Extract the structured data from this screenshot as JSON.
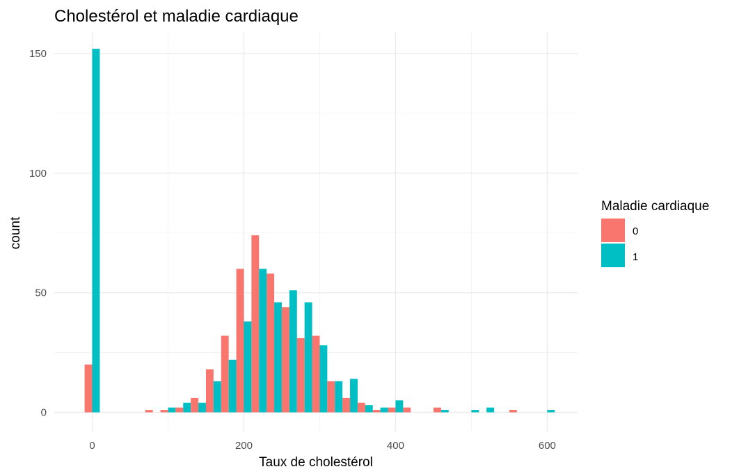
{
  "chart_data": {
    "type": "bar",
    "title": "Cholestérol et maladie cardiaque",
    "xlabel": "Taux de cholestérol",
    "ylabel": "count",
    "xlim": [
      -50,
      640
    ],
    "ylim": [
      -8,
      159
    ],
    "xticks": [
      "0",
      "200",
      "400",
      "600"
    ],
    "xtick_values": [
      0,
      200,
      400,
      600
    ],
    "yticks": [
      "0",
      "50",
      "100",
      "150"
    ],
    "ytick_values": [
      0,
      50,
      100,
      150
    ],
    "bin_width": 20,
    "grid": true,
    "legend": {
      "title": "Maladie cardiaque",
      "position": "right"
    },
    "bins": [
      0,
      20,
      40,
      60,
      80,
      100,
      120,
      140,
      160,
      180,
      200,
      220,
      240,
      260,
      280,
      300,
      320,
      340,
      360,
      380,
      400,
      420,
      440,
      460,
      480,
      500,
      520,
      540,
      560,
      580,
      600
    ],
    "series": [
      {
        "name": "0",
        "color": "#F8766D",
        "values": [
          20,
          0,
          0,
          0,
          1,
          1,
          2,
          6,
          18,
          32,
          60,
          74,
          58,
          44,
          31,
          32,
          13,
          6,
          4,
          1,
          2,
          2,
          0,
          2,
          0,
          0,
          0,
          0,
          1,
          0,
          0
        ]
      },
      {
        "name": "1",
        "color": "#00BFC4",
        "values": [
          152,
          0,
          0,
          0,
          0,
          2,
          4,
          4,
          13,
          22,
          38,
          60,
          46,
          51,
          46,
          28,
          13,
          14,
          3,
          2,
          5,
          0,
          0,
          1,
          0,
          1,
          2,
          0,
          0,
          0,
          1
        ]
      }
    ]
  }
}
